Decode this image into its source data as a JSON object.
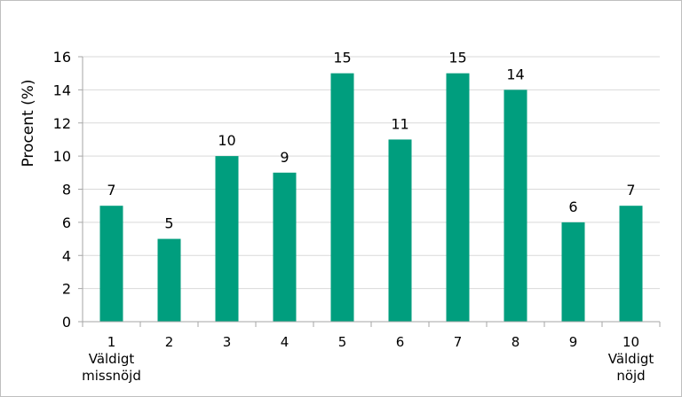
{
  "chart_data": {
    "type": "bar",
    "categories": [
      [
        "1",
        "Väldigt",
        "missnöjd"
      ],
      [
        "2"
      ],
      [
        "3"
      ],
      [
        "4"
      ],
      [
        "5"
      ],
      [
        "6"
      ],
      [
        "7"
      ],
      [
        "8"
      ],
      [
        "9"
      ],
      [
        "10",
        "Väldigt",
        "nöjd"
      ]
    ],
    "values": [
      7,
      5,
      10,
      9,
      15,
      11,
      15,
      14,
      6,
      7
    ],
    "ylabel": "Procent (%)",
    "ylim": [
      0,
      16
    ],
    "yticks": [
      0,
      2,
      4,
      6,
      8,
      10,
      12,
      14,
      16
    ],
    "grid": true,
    "legend": "none",
    "bar_color": "#009e7e",
    "grid_color": "#d9d9d9",
    "axis_color": "#a6a6a6"
  }
}
